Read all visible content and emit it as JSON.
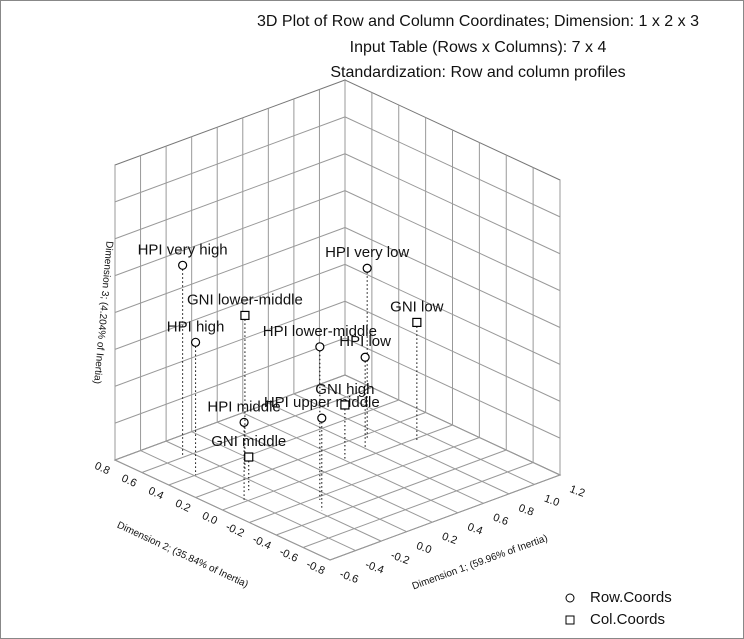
{
  "chart_data": {
    "type": "scatter3d",
    "title": "3D Plot of Row and Column Coordinates; Dimension:  1  x  2  x  3",
    "subtitles": [
      "Input Table (Rows x Columns): 7 x 4",
      "Standardization: Row and column profiles"
    ],
    "xlabel": "Dimension 1; (59.96% of Inertia)",
    "ylabel": "Dimension 2; (35.84% of Inertia)",
    "zlabel": "Dimension 3; (4.204% of Inertia)",
    "xlim": [
      -0.6,
      1.2
    ],
    "xticks": [
      -0.6,
      -0.4,
      -0.2,
      {
        "value": 0,
        "label": "0.0"
      },
      0.2,
      0.4,
      0.6,
      0.8,
      {
        "value": 1,
        "label": "1.0"
      },
      1.2
    ],
    "ylim": [
      -0.8,
      0.8
    ],
    "yticks": [
      -0.8,
      -0.6,
      -0.4,
      -0.2,
      {
        "value": 0,
        "label": "0.0"
      },
      0.2,
      0.4,
      0.6,
      0.8
    ],
    "zlim": [
      -0.6,
      1.0
    ],
    "grid": true,
    "legend": "lower right",
    "series": [
      {
        "name": "Row.Coords",
        "marker": "circle",
        "color": "#000000",
        "labels": [
          "HPI very high",
          "HPI very low",
          "HPI high",
          "HPI lower-middle",
          "HPI low",
          "HPI upper middle",
          "HPI middle"
        ],
        "x": [
          -0.26,
          0.69,
          -0.39,
          -0.08,
          0.59,
          -0.17,
          -0.41
        ],
        "y": [
          0.62,
          0.15,
          0.4,
          -0.23,
          0.07,
          -0.33,
          0.02
        ],
        "z": [
          0.43,
          0.33,
          0.12,
          0.23,
          -0.1,
          -0.1,
          -0.18
        ]
      },
      {
        "name": "Col.Coords",
        "marker": "square",
        "color": "#000000",
        "labels": [
          "GNI lower-middle",
          "GNI low",
          "GNI high",
          "GNI middle"
        ],
        "x": [
          -0.13,
          0.9,
          0.4,
          -0.3
        ],
        "y": [
          0.28,
          -0.02,
          0.04,
          0.09
        ],
        "z": [
          0.24,
          0.04,
          -0.3,
          -0.42
        ]
      }
    ]
  }
}
